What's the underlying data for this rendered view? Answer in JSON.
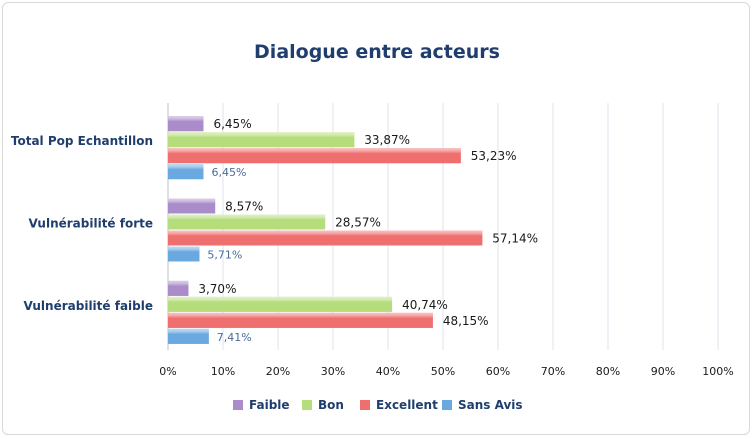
{
  "chart_data": {
    "type": "bar",
    "orientation": "horizontal",
    "title": "Dialogue entre acteurs",
    "categories": [
      "Total Pop Echantillon",
      "Vulnérabilité forte",
      "Vulnérabilité faible"
    ],
    "series": [
      {
        "name": "Faible",
        "color": "#a98cc9",
        "values": [
          6.45,
          8.57,
          3.7
        ],
        "labels": [
          "6,45%",
          "8,57%",
          "3,70%"
        ]
      },
      {
        "name": "Bon",
        "color": "#b5dd7c",
        "values": [
          33.87,
          28.57,
          40.74
        ],
        "labels": [
          "33,87%",
          "28,57%",
          "40,74%"
        ]
      },
      {
        "name": "Excellent",
        "color": "#ef6f6e",
        "values": [
          53.23,
          57.14,
          48.15
        ],
        "labels": [
          "53,23%",
          "57,14%",
          "48,15%"
        ]
      },
      {
        "name": "Sans Avis",
        "color": "#6aa9e0",
        "values": [
          6.45,
          5.71,
          7.41
        ],
        "labels": [
          "6,45%",
          "5,71%",
          "7,41%"
        ]
      }
    ],
    "xlim": [
      0,
      100
    ],
    "x_ticks": [
      "0%",
      "10%",
      "20%",
      "30%",
      "40%",
      "50%",
      "60%",
      "70%",
      "80%",
      "90%",
      "100%"
    ],
    "grid": true,
    "legend_position": "bottom"
  }
}
